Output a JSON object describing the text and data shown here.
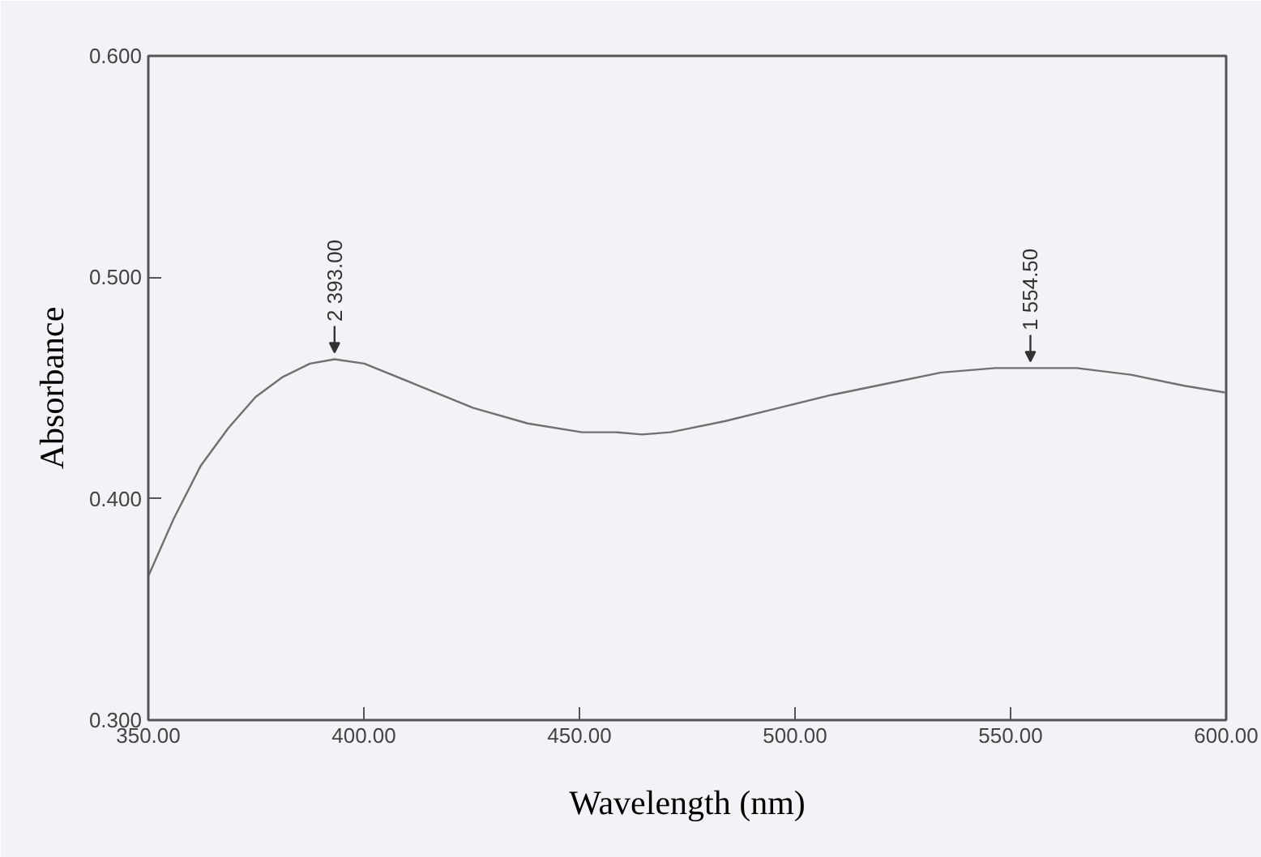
{
  "chart_data": {
    "type": "line",
    "xlabel": "Wavelength (nm)",
    "ylabel": "Absorbance",
    "x": [
      350,
      355.9,
      362.2,
      368.6,
      374.9,
      381.2,
      387.5,
      393.2,
      400.1,
      412.8,
      425.4,
      438,
      450.6,
      458.5,
      464.5,
      471.1,
      483.7,
      496.2,
      508.8,
      521.4,
      533.9,
      546.5,
      554.6,
      565.3,
      577.9,
      590.3,
      599.7
    ],
    "series": [
      {
        "color": "#707070",
        "values": [
          0.365,
          0.391,
          0.415,
          0.432,
          0.446,
          0.455,
          0.461,
          0.463,
          0.461,
          0.451,
          0.441,
          0.434,
          0.43,
          0.43,
          0.429,
          0.43,
          0.435,
          0.441,
          0.447,
          0.452,
          0.457,
          0.459,
          0.459,
          0.459,
          0.456,
          0.451,
          0.448
        ]
      }
    ],
    "xlim": [
      350,
      600
    ],
    "ylim": [
      0.3,
      0.6
    ],
    "xticks": [
      {
        "value": 350,
        "label": "350.00"
      },
      {
        "value": 400,
        "label": "400.00"
      },
      {
        "value": 450,
        "label": "450.00"
      },
      {
        "value": 500,
        "label": "500.00"
      },
      {
        "value": 550,
        "label": "550.00"
      },
      {
        "value": 600,
        "label": "600.00"
      }
    ],
    "yticks": [
      {
        "value": 0.3,
        "label": "0.300"
      },
      {
        "value": 0.4,
        "label": "0.400"
      },
      {
        "value": 0.5,
        "label": "0.500"
      },
      {
        "value": 0.6,
        "label": "0.600"
      }
    ],
    "grid": false,
    "marker": "none",
    "line_style": "solid",
    "annotations": [
      {
        "text": "2 393.00",
        "x": 393.2,
        "y": 0.463
      },
      {
        "text": "1 554.50",
        "x": 554.6,
        "y": 0.459
      }
    ]
  }
}
